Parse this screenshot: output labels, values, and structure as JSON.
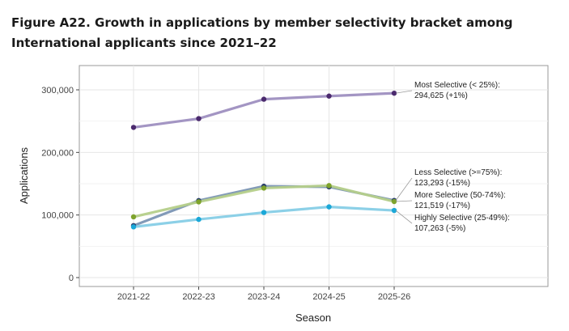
{
  "page": {
    "title": "Figure A22. Growth in applications by member selectivity bracket among International applicants since 2021–22"
  },
  "chart_data": {
    "type": "line",
    "title": "Figure A22. Growth in applications by member selectivity bracket among International applicants since 2021–22",
    "xlabel": "Season",
    "ylabel": "Applications",
    "ylim": [
      0,
      330000
    ],
    "yticks": [
      0,
      100000,
      200000,
      300000
    ],
    "ytick_labels": [
      "0",
      "100,000",
      "200,000",
      "300,000"
    ],
    "categories": [
      "2021-22",
      "2022-23",
      "2023-24",
      "2024-25",
      "2025-26"
    ],
    "grid": true,
    "series": [
      {
        "name": "Most Selective (< 25%)",
        "values": [
          240000,
          254000,
          285000,
          290000,
          294625
        ],
        "line_color": "#9e8fc0",
        "point_color": "#4b2a6e",
        "label_lines": [
          "Most Selective (< 25%):",
          "294,625 (+1%)"
        ]
      },
      {
        "name": "Less Selective (>=75%)",
        "values": [
          83000,
          123000,
          146000,
          145000,
          123293
        ],
        "line_color": "#7b95b4",
        "point_color": "#2a3f6b",
        "label_lines": [
          "Less Selective (>=75%):",
          "123,293 (-15%)"
        ]
      },
      {
        "name": "More Selective (50-74%)",
        "values": [
          97000,
          121000,
          143000,
          147000,
          121519
        ],
        "line_color": "#b5cf8a",
        "point_color": "#7ea32c",
        "label_lines": [
          "More Selective (50-74%):",
          "121,519 (-17%)"
        ]
      },
      {
        "name": "Highly Selective (25-49%)",
        "values": [
          81000,
          93000,
          104000,
          113000,
          107263
        ],
        "line_color": "#86cde6",
        "point_color": "#1ba8d8",
        "label_lines": [
          "Highly Selective (25-49%):",
          "107,263 (-5%)"
        ]
      }
    ]
  }
}
